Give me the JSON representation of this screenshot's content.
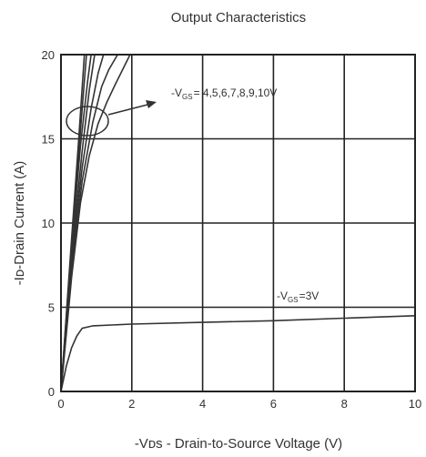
{
  "chart_data": {
    "type": "line",
    "title": "Output Characteristics",
    "xlabel": "-Vᴅs - Drain-to-Source Voltage (V)",
    "ylabel": "-Iᴅ-Drain Current (A)",
    "xlim": [
      0,
      10
    ],
    "ylim": [
      0,
      20
    ],
    "xticks": [
      "0",
      "2",
      "4",
      "6",
      "8",
      "10"
    ],
    "yticks": [
      "0",
      "5",
      "10",
      "15",
      "20"
    ],
    "grid": true,
    "annotations": [
      {
        "text": "-V",
        "sub": "GS",
        "rest": "= 4,5,6,7,8,9,10V"
      },
      {
        "text": "-V",
        "sub": "GS",
        "rest": "=3V"
      }
    ],
    "series": [
      {
        "x": [
          0,
          0.3,
          0.55,
          0.8,
          1.05,
          1.3,
          1.55,
          1.95
        ],
        "y": [
          0,
          6.8,
          11.2,
          14.0,
          15.9,
          17.2,
          18.3,
          20
        ]
      },
      {
        "x": [
          0,
          0.3,
          0.6,
          0.9,
          1.15,
          1.35,
          1.6
        ],
        "y": [
          0,
          7.4,
          12.5,
          16.0,
          18.1,
          19.1,
          20
        ]
      },
      {
        "x": [
          0,
          0.3,
          0.6,
          0.85,
          1.05,
          1.2
        ],
        "y": [
          0,
          7.8,
          13.3,
          16.8,
          18.9,
          20
        ]
      },
      {
        "x": [
          0,
          0.3,
          0.6,
          0.8,
          0.95
        ],
        "y": [
          0,
          8.1,
          14.3,
          17.9,
          20
        ]
      },
      {
        "x": [
          0,
          0.3,
          0.55,
          0.75,
          0.85
        ],
        "y": [
          0,
          8.5,
          14.6,
          18.4,
          20
        ]
      },
      {
        "x": [
          0,
          0.3,
          0.55,
          0.72
        ],
        "y": [
          0,
          8.8,
          15.5,
          20
        ]
      },
      {
        "x": [
          0,
          0.3,
          0.5,
          0.66
        ],
        "y": [
          0,
          9.1,
          15.0,
          20
        ]
      },
      {
        "x": [
          0,
          0.15,
          0.3,
          0.45,
          0.6,
          0.9,
          2,
          4,
          6,
          8,
          10
        ],
        "y": [
          0,
          1.5,
          2.6,
          3.3,
          3.75,
          3.9,
          4.0,
          4.1,
          4.2,
          4.35,
          4.5
        ]
      }
    ]
  }
}
